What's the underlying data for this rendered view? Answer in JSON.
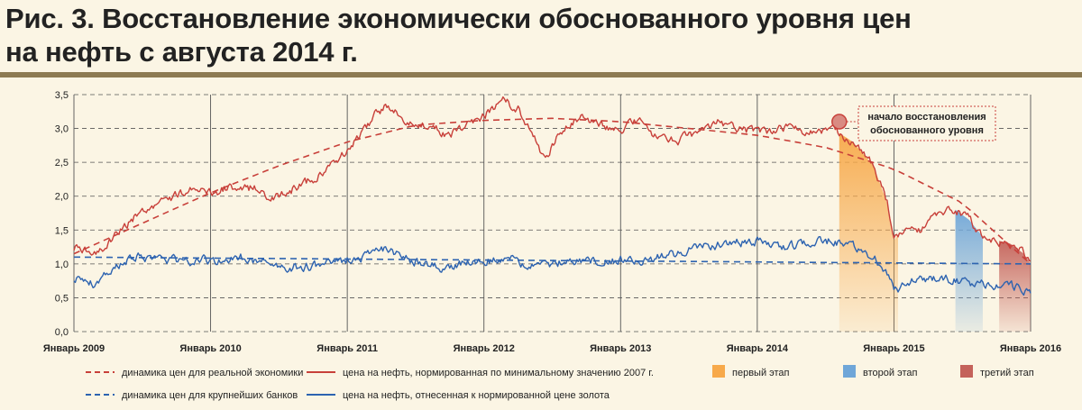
{
  "title_line1": "Рис. 3. Восстановление экономически обоснованного уровня цен",
  "title_line2": "на нефть с августа 2014 г.",
  "chart_data": {
    "type": "line",
    "x_ticks": [
      "Январь 2009",
      "Январь 2010",
      "Январь 2011",
      "Январь 2012",
      "Январь 2013",
      "Январь 2014",
      "Январь 2015",
      "Январь 2016"
    ],
    "y_ticks": [
      "0,0",
      "0,5",
      "1,0",
      "1,5",
      "2,0",
      "2,5",
      "3,0",
      "3,5"
    ],
    "ylim": [
      0,
      3.5
    ],
    "grid": true,
    "annotation": {
      "line1": "начало восстановления",
      "line2": "обоснованного уровня",
      "x": 2014.6,
      "y": 3.1
    },
    "stages": [
      {
        "name": "первый этап",
        "start": 2014.6,
        "end": 2015.03,
        "color": "#f7a94a"
      },
      {
        "name": "второй этап",
        "start": 2015.45,
        "end": 2015.65,
        "color": "#6fa6d8"
      },
      {
        "name": "третий этап",
        "start": 2015.77,
        "end": 2016.0,
        "color": "#c4625a"
      }
    ],
    "series": [
      {
        "name": "динамика цен для реальной экономики",
        "style": "dashed",
        "color": "#c8403a",
        "points": [
          [
            2009.0,
            1.15
          ],
          [
            2009.5,
            1.6
          ],
          [
            2010.0,
            2.05
          ],
          [
            2010.5,
            2.45
          ],
          [
            2011.0,
            2.8
          ],
          [
            2011.5,
            3.05
          ],
          [
            2012.0,
            3.12
          ],
          [
            2012.5,
            3.15
          ],
          [
            2013.0,
            3.1
          ],
          [
            2013.5,
            3.0
          ],
          [
            2014.0,
            2.9
          ],
          [
            2014.5,
            2.72
          ],
          [
            2015.0,
            2.4
          ],
          [
            2015.5,
            1.9
          ],
          [
            2016.0,
            1.0
          ]
        ]
      },
      {
        "name": "динамика цен для крупнейших банков",
        "style": "dashed",
        "color": "#2d63b0",
        "points": [
          [
            2009.0,
            1.1
          ],
          [
            2016.0,
            1.0
          ]
        ]
      },
      {
        "name": "цена на нефть, нормированная по минимальному значению  2007 г.",
        "style": "solid",
        "color": "#c8403a",
        "points": [
          [
            2009.0,
            1.25
          ],
          [
            2009.15,
            1.15
          ],
          [
            2009.3,
            1.4
          ],
          [
            2009.5,
            1.8
          ],
          [
            2009.7,
            1.95
          ],
          [
            2009.85,
            2.1
          ],
          [
            2010.0,
            2.05
          ],
          [
            2010.2,
            2.15
          ],
          [
            2010.35,
            2.1
          ],
          [
            2010.45,
            1.95
          ],
          [
            2010.6,
            2.1
          ],
          [
            2010.75,
            2.25
          ],
          [
            2010.9,
            2.5
          ],
          [
            2011.0,
            2.7
          ],
          [
            2011.1,
            2.9
          ],
          [
            2011.2,
            3.2
          ],
          [
            2011.3,
            3.35
          ],
          [
            2011.45,
            3.1
          ],
          [
            2011.6,
            3.05
          ],
          [
            2011.75,
            2.9
          ],
          [
            2011.9,
            3.05
          ],
          [
            2012.0,
            3.2
          ],
          [
            2012.15,
            3.4
          ],
          [
            2012.25,
            3.3
          ],
          [
            2012.35,
            2.95
          ],
          [
            2012.45,
            2.5
          ],
          [
            2012.55,
            2.95
          ],
          [
            2012.7,
            3.15
          ],
          [
            2012.85,
            3.05
          ],
          [
            2013.0,
            3.0
          ],
          [
            2013.15,
            3.15
          ],
          [
            2013.25,
            2.9
          ],
          [
            2013.4,
            2.8
          ],
          [
            2013.55,
            2.95
          ],
          [
            2013.7,
            3.1
          ],
          [
            2013.85,
            3.0
          ],
          [
            2014.0,
            2.95
          ],
          [
            2014.2,
            3.0
          ],
          [
            2014.4,
            2.95
          ],
          [
            2014.55,
            3.0
          ],
          [
            2014.7,
            2.8
          ],
          [
            2014.85,
            2.45
          ],
          [
            2014.95,
            1.9
          ],
          [
            2015.0,
            1.35
          ],
          [
            2015.1,
            1.6
          ],
          [
            2015.2,
            1.5
          ],
          [
            2015.3,
            1.7
          ],
          [
            2015.45,
            1.8
          ],
          [
            2015.55,
            1.65
          ],
          [
            2015.65,
            1.4
          ],
          [
            2015.75,
            1.35
          ],
          [
            2015.85,
            1.3
          ],
          [
            2015.95,
            1.15
          ],
          [
            2016.0,
            1.0
          ]
        ]
      },
      {
        "name": "цена на нефть, отнесенная к  нормированной цене золота",
        "style": "solid",
        "color": "#2d63b0",
        "points": [
          [
            2009.0,
            0.8
          ],
          [
            2009.15,
            0.7
          ],
          [
            2009.3,
            0.95
          ],
          [
            2009.45,
            1.1
          ],
          [
            2009.6,
            1.1
          ],
          [
            2009.75,
            1.05
          ],
          [
            2009.9,
            1.05
          ],
          [
            2010.0,
            1.05
          ],
          [
            2010.2,
            1.1
          ],
          [
            2010.35,
            1.05
          ],
          [
            2010.5,
            0.95
          ],
          [
            2010.65,
            0.95
          ],
          [
            2010.8,
            0.98
          ],
          [
            2010.95,
            1.05
          ],
          [
            2011.1,
            1.1
          ],
          [
            2011.25,
            1.25
          ],
          [
            2011.4,
            1.1
          ],
          [
            2011.55,
            1.0
          ],
          [
            2011.7,
            0.95
          ],
          [
            2011.85,
            1.0
          ],
          [
            2012.0,
            1.05
          ],
          [
            2012.15,
            1.1
          ],
          [
            2012.3,
            1.0
          ],
          [
            2012.45,
            0.95
          ],
          [
            2012.6,
            1.05
          ],
          [
            2012.8,
            1.05
          ],
          [
            2013.0,
            1.05
          ],
          [
            2013.2,
            1.05
          ],
          [
            2013.4,
            1.15
          ],
          [
            2013.6,
            1.25
          ],
          [
            2013.8,
            1.3
          ],
          [
            2014.0,
            1.35
          ],
          [
            2014.2,
            1.25
          ],
          [
            2014.4,
            1.3
          ],
          [
            2014.55,
            1.35
          ],
          [
            2014.7,
            1.25
          ],
          [
            2014.85,
            1.1
          ],
          [
            2014.95,
            0.85
          ],
          [
            2015.02,
            0.6
          ],
          [
            2015.15,
            0.75
          ],
          [
            2015.3,
            0.8
          ],
          [
            2015.5,
            0.75
          ],
          [
            2015.6,
            0.7
          ],
          [
            2015.75,
            0.7
          ],
          [
            2015.9,
            0.65
          ],
          [
            2016.0,
            0.55
          ]
        ]
      }
    ],
    "legend": [
      {
        "label": "динамика цен для реальной экономики",
        "kind": "dashed",
        "color": "#c8403a"
      },
      {
        "label": "цена на нефть, нормированная по минимальному значению  2007 г.",
        "kind": "solid",
        "color": "#c8403a"
      },
      {
        "label": "первый этап",
        "kind": "swatch",
        "color": "#f7a94a"
      },
      {
        "label": "второй этап",
        "kind": "swatch",
        "color": "#6fa6d8"
      },
      {
        "label": "третий этап",
        "kind": "swatch",
        "color": "#c4625a"
      },
      {
        "label": "динамика цен для крупнейших банков",
        "kind": "dashed",
        "color": "#2d63b0"
      },
      {
        "label": "цена на нефть, отнесенная к  нормированной цене золота",
        "kind": "solid",
        "color": "#2d63b0"
      }
    ]
  }
}
